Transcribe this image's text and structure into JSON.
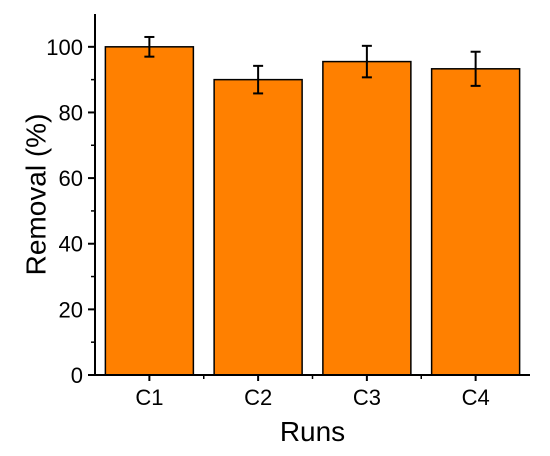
{
  "chart_data": {
    "type": "bar",
    "title": "",
    "xlabel": "Runs",
    "ylabel": "Removal (%)",
    "categories": [
      "C1",
      "C2",
      "C3",
      "C4"
    ],
    "values": [
      100,
      90,
      95.5,
      93.3
    ],
    "errors": [
      3.0,
      4.2,
      4.8,
      5.2
    ],
    "ylim": [
      0,
      110
    ],
    "yticks": [
      0,
      20,
      40,
      60,
      80,
      100
    ],
    "grid": false,
    "legend": "none",
    "colors": {
      "bar": "#FF8000",
      "bar_edge": "#000000",
      "axis": "#000000"
    }
  }
}
